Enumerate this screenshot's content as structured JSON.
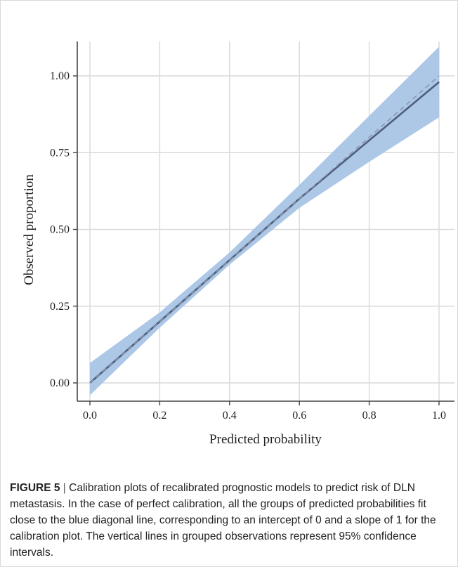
{
  "chart_data": {
    "type": "line",
    "title": "",
    "xlabel": "Predicted probability",
    "ylabel": "Observed proportion",
    "xlim": [
      0.0,
      1.0
    ],
    "ylim": [
      0.0,
      1.0
    ],
    "x_ticks": [
      0.0,
      0.2,
      0.4,
      0.6,
      0.8,
      1.0
    ],
    "x_tick_labels": [
      "0.0",
      "0.2",
      "0.4",
      "0.6",
      "0.8",
      "1.0"
    ],
    "y_ticks": [
      0.0,
      0.25,
      0.5,
      0.75,
      1.0
    ],
    "y_tick_labels": [
      "0.00",
      "0.25",
      "0.50",
      "0.75",
      "1.00"
    ],
    "grid": true,
    "series": [
      {
        "kind": "fit",
        "x": [
          0.0,
          0.2,
          0.4,
          0.6,
          0.8,
          1.0
        ],
        "y": [
          0.0,
          0.2,
          0.4,
          0.6,
          0.79,
          0.98
        ]
      },
      {
        "kind": "reference-diagonal",
        "x": [
          0.0,
          1.0
        ],
        "y": [
          0.0,
          1.0
        ]
      }
    ],
    "confidence_band": {
      "x": [
        0.0,
        0.2,
        0.4,
        0.6,
        0.8,
        1.0
      ],
      "lower": [
        -0.04,
        0.18,
        0.385,
        0.57,
        0.72,
        0.865
      ],
      "upper": [
        0.065,
        0.23,
        0.425,
        0.645,
        0.87,
        1.095
      ]
    },
    "colors": {
      "band": "#a9c4e6",
      "fit_line": "#4d5f7e",
      "reference": "#8d97a8",
      "grid": "#d9d9d9",
      "axis": "#444444"
    }
  },
  "caption": {
    "label": "FIGURE 5",
    "separator": "|",
    "text": "Calibration plots of recalibrated prognostic models to predict risk of DLN metastasis. In the case of perfect calibration, all the groups of predicted probabilities fit close to the blue diagonal line, corresponding to an intercept of 0 and a slope of 1 for the calibration plot. The vertical lines in grouped observations represent 95% confidence intervals."
  }
}
